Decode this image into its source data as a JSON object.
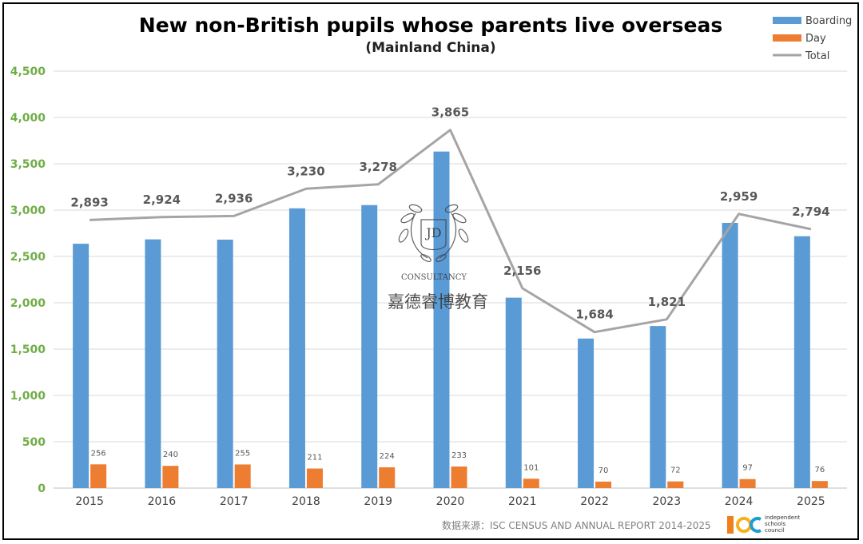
{
  "chart_data": {
    "type": "bar",
    "title": "New non-British pupils whose parents live overseas",
    "subtitle": "(Mainland China)",
    "categories": [
      "2015",
      "2016",
      "2017",
      "2018",
      "2019",
      "2020",
      "2021",
      "2022",
      "2023",
      "2024",
      "2025"
    ],
    "series": [
      {
        "name": "Boarding",
        "type": "bar",
        "color": "#5b9bd5",
        "values": [
          2637,
          2684,
          2681,
          3019,
          3054,
          3632,
          2055,
          1614,
          1749,
          2862,
          2718
        ]
      },
      {
        "name": "Day",
        "type": "bar",
        "color": "#ed7d31",
        "values": [
          256,
          240,
          255,
          211,
          224,
          233,
          101,
          70,
          72,
          97,
          76
        ]
      },
      {
        "name": "Total",
        "type": "line",
        "color": "#a5a5a5",
        "values": [
          2893,
          2924,
          2936,
          3230,
          3278,
          3865,
          2156,
          1684,
          1821,
          2959,
          2794
        ]
      }
    ],
    "ylim": [
      0,
      4500
    ],
    "ytick_step": 500,
    "grid": true,
    "legend_position": "top-right",
    "total_labels": [
      "2,893",
      "2,924",
      "2,936",
      "3,230",
      "3,278",
      "3,865",
      "2,156",
      "1,684",
      "1,821",
      "2,959",
      "2,794"
    ],
    "day_labels": [
      "256",
      "240",
      "255",
      "211",
      "224",
      "233",
      "101",
      "70",
      "72",
      "97",
      "76"
    ]
  },
  "source": "数据来源：ISC CENSUS AND ANNUAL REPORT 2014-2025",
  "isc_logo": {
    "line1": "independent",
    "line2": "schools",
    "line3": "council",
    "colors": [
      "#f07f1e",
      "#f5b21c",
      "#1f9bd7"
    ]
  },
  "watermark": {
    "monogram": "JD",
    "text": "CONSULTANCY",
    "chinese": "嘉德睿博教育"
  }
}
